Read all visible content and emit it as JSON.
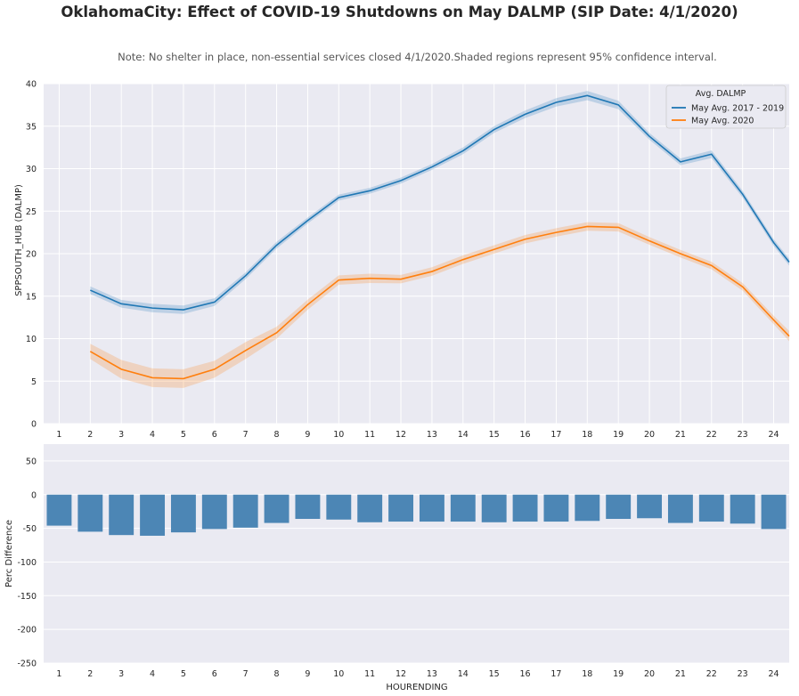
{
  "title": "OklahomaCity: Effect of COVID-19 Shutdowns on May DALMP (SIP Date: 4/1/2020)",
  "subtitle": "Note: No shelter in place, non-essential services closed 4/1/2020.Shaded regions represent 95% confidence interval.",
  "colors": {
    "background": "#eaeaf2",
    "grid": "#ffffff",
    "series_2017_2019": "#1f77b4",
    "series_2020": "#ff7f0e",
    "bar": "#4c86b5"
  },
  "chart_data": [
    {
      "type": "line",
      "xlabel": "",
      "ylabel": "SPPSOUTH_HUB (DALMP)",
      "ylim": [
        0,
        40
      ],
      "yticks": [
        0,
        5,
        10,
        15,
        20,
        25,
        30,
        35,
        40
      ],
      "xlim": [
        0.5,
        24.5
      ],
      "x_ticks": [
        1,
        2,
        3,
        4,
        5,
        6,
        7,
        8,
        9,
        10,
        11,
        12,
        13,
        14,
        15,
        16,
        17,
        18,
        19,
        20,
        21,
        22,
        23,
        24
      ],
      "grid": true,
      "legend_title": "Avg. DALMP",
      "legend_position": "top-right",
      "series": [
        {
          "name": "May Avg. 2017 - 2019",
          "x": [
            2,
            3,
            4,
            5,
            6,
            7,
            8,
            9,
            10,
            11,
            12,
            13,
            14,
            15,
            16,
            17,
            18,
            19,
            20,
            21,
            22,
            23,
            24,
            24.5
          ],
          "values": [
            15.7,
            14.1,
            13.6,
            13.4,
            14.3,
            17.4,
            21.0,
            23.9,
            26.6,
            27.4,
            28.6,
            30.2,
            32.1,
            34.6,
            36.4,
            37.8,
            38.6,
            37.5,
            33.8,
            30.8,
            31.7,
            27.0,
            21.3,
            19.0
          ],
          "ci": [
            0.45,
            0.45,
            0.5,
            0.5,
            0.45,
            0.4,
            0.4,
            0.35,
            0.35,
            0.35,
            0.35,
            0.35,
            0.4,
            0.4,
            0.45,
            0.5,
            0.55,
            0.5,
            0.4,
            0.4,
            0.45,
            0.4,
            0.4,
            0.4
          ]
        },
        {
          "name": "May Avg. 2020",
          "x": [
            2,
            3,
            4,
            5,
            6,
            7,
            8,
            9,
            10,
            11,
            12,
            13,
            14,
            15,
            16,
            17,
            18,
            19,
            20,
            21,
            22,
            23,
            24,
            24.5
          ],
          "values": [
            8.5,
            6.4,
            5.4,
            5.3,
            6.4,
            8.6,
            10.7,
            14.0,
            16.9,
            17.1,
            17.0,
            17.9,
            19.3,
            20.5,
            21.7,
            22.5,
            23.2,
            23.1,
            21.5,
            20.0,
            18.6,
            16.1,
            12.2,
            10.3
          ],
          "ci": [
            0.9,
            1.1,
            1.1,
            1.1,
            1.0,
            1.0,
            0.7,
            0.6,
            0.55,
            0.55,
            0.5,
            0.5,
            0.5,
            0.5,
            0.5,
            0.5,
            0.5,
            0.5,
            0.45,
            0.45,
            0.45,
            0.45,
            0.5,
            0.6
          ]
        }
      ]
    },
    {
      "type": "bar",
      "xlabel": "HOURENDING",
      "ylabel": "Perc Difference",
      "ylim": [
        -250,
        75
      ],
      "yticks": [
        50,
        0,
        -50,
        -100,
        -150,
        -200,
        -250
      ],
      "categories": [
        "1",
        "2",
        "3",
        "4",
        "5",
        "6",
        "7",
        "8",
        "9",
        "10",
        "11",
        "12",
        "13",
        "14",
        "15",
        "16",
        "17",
        "18",
        "19",
        "20",
        "21",
        "22",
        "23",
        "24"
      ],
      "values": [
        -46,
        -55,
        -60,
        -61,
        -56,
        -51,
        -49,
        -42,
        -36,
        -37,
        -41,
        -40,
        -40,
        -40,
        -41,
        -40,
        -40,
        -39,
        -36,
        -35,
        -42,
        -40,
        -43,
        -51
      ],
      "grid": true
    }
  ]
}
